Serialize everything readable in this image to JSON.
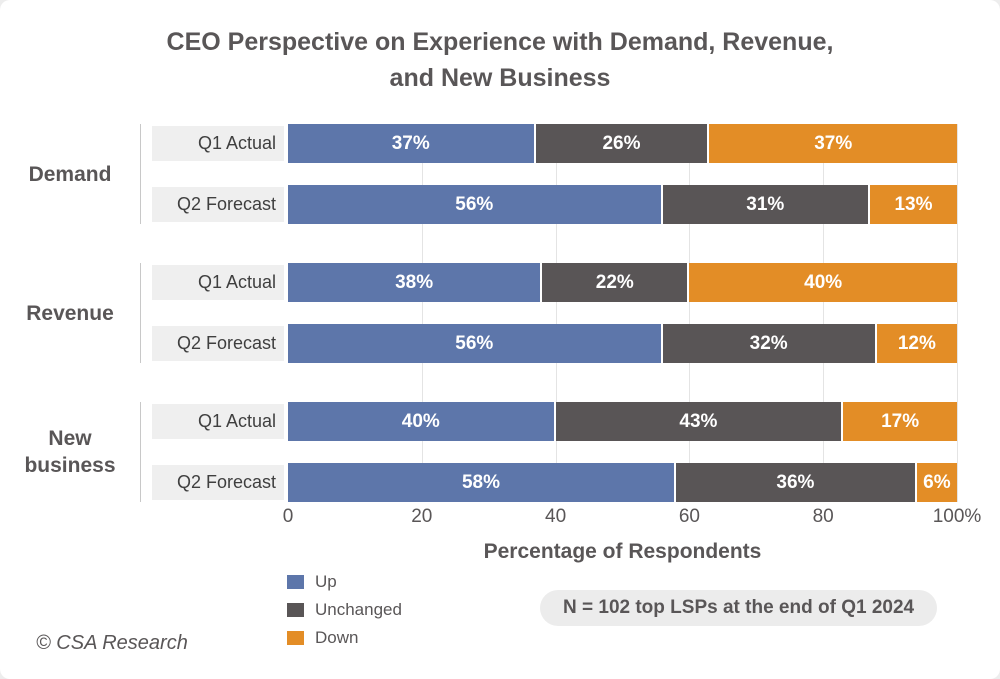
{
  "title": {
    "line1": "CEO Perspective on Experience with Demand, Revenue,",
    "line2": "and New Business"
  },
  "chart_data": {
    "type": "bar",
    "stacked": true,
    "orientation": "horizontal",
    "xlabel": "Percentage of Respondents",
    "xlim": [
      0,
      100
    ],
    "x_ticks": [
      "0",
      "20",
      "40",
      "60",
      "80",
      "100%"
    ],
    "grid": "vertical",
    "series_names": [
      "Up",
      "Unchanged",
      "Down"
    ],
    "colors": {
      "up": "#5d76aa",
      "unchanged": "#595556",
      "down": "#e38d26"
    },
    "groups": [
      {
        "label": "Demand",
        "rows": [
          {
            "label": "Q1 Actual",
            "values": [
              37,
              26,
              37
            ],
            "value_labels": [
              "37%",
              "26%",
              "37%"
            ]
          },
          {
            "label": "Q2 Forecast",
            "values": [
              56,
              31,
              13
            ],
            "value_labels": [
              "56%",
              "31%",
              "13%"
            ]
          }
        ]
      },
      {
        "label": "Revenue",
        "rows": [
          {
            "label": "Q1 Actual",
            "values": [
              38,
              22,
              40
            ],
            "value_labels": [
              "38%",
              "22%",
              "40%"
            ]
          },
          {
            "label": "Q2 Forecast",
            "values": [
              56,
              32,
              12
            ],
            "value_labels": [
              "56%",
              "32%",
              "12%"
            ]
          }
        ]
      },
      {
        "label": "New business",
        "rows": [
          {
            "label": "Q1 Actual",
            "values": [
              40,
              43,
              17
            ],
            "value_labels": [
              "40%",
              "43%",
              "17%"
            ]
          },
          {
            "label": "Q2 Forecast",
            "values": [
              58,
              36,
              6
            ],
            "value_labels": [
              "58%",
              "36%",
              "6%"
            ]
          }
        ]
      }
    ]
  },
  "legend": {
    "items": [
      {
        "label": "Up",
        "color": "#5d76aa"
      },
      {
        "label": "Unchanged",
        "color": "#595556"
      },
      {
        "label": "Down",
        "color": "#e38d26"
      }
    ]
  },
  "note": "N = 102 top LSPs at the end of Q1 2024",
  "footer": "© CSA Research"
}
